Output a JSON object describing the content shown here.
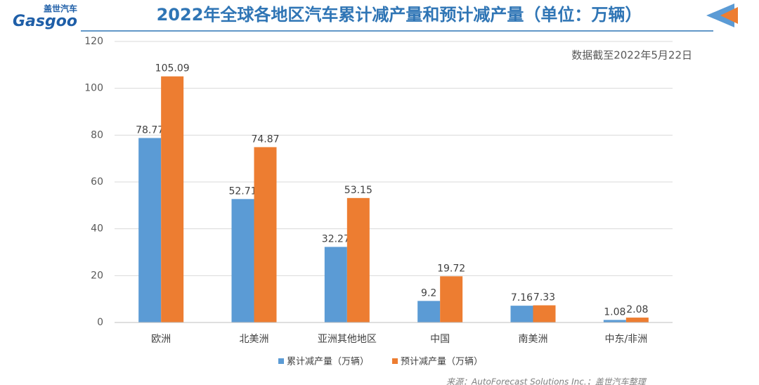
{
  "logo": {
    "brand_cn": "盖世汽车",
    "brand_en": "Gasgoo"
  },
  "chart_data": {
    "type": "bar",
    "title": "2022年全球各地区汽车累计减产量和预计减产量（单位：万辆）",
    "note": "数据截至2022年5月22日",
    "categories": [
      "欧洲",
      "北美洲",
      "亚洲其他地区",
      "中国",
      "南美洲",
      "中东/非洲"
    ],
    "series": [
      {
        "name": "累计减产量（万辆）",
        "color": "#5b9bd5",
        "values": [
          78.77,
          52.71,
          32.27,
          9.2,
          7.16,
          1.08
        ]
      },
      {
        "name": "预计减产量（万辆）",
        "color": "#ed7d31",
        "values": [
          105.09,
          74.87,
          53.15,
          19.72,
          7.33,
          2.08
        ]
      }
    ],
    "ylim": [
      0,
      120
    ],
    "yticks": [
      0,
      20,
      40,
      60,
      80,
      100,
      120
    ],
    "grid": true,
    "source": "来源：AutoForecast Solutions Inc.；盖世汽车整理"
  }
}
